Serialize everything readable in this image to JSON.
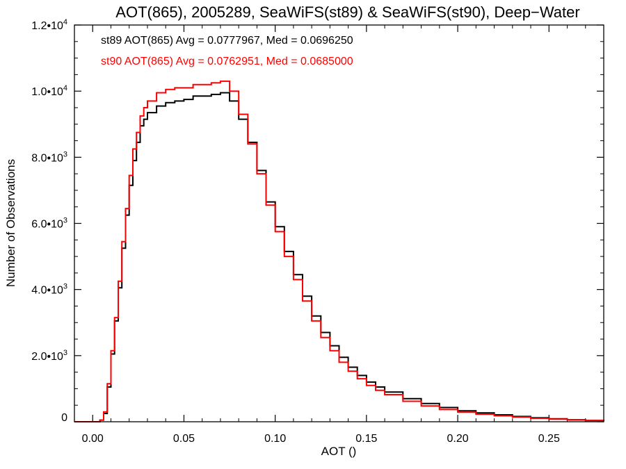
{
  "chart_data": {
    "type": "line",
    "title": "AOT(865), 2005289, SeaWiFS(st89) & SeaWiFS(st90), Deep−Water",
    "xlabel": "AOT ()",
    "ylabel": "Number of Observations",
    "xlim": [
      -0.01,
      0.28
    ],
    "ylim": [
      0,
      12000
    ],
    "xticks": [
      {
        "value": 0.0,
        "label": "0.00"
      },
      {
        "value": 0.05,
        "label": "0.05"
      },
      {
        "value": 0.1,
        "label": "0.10"
      },
      {
        "value": 0.15,
        "label": "0.15"
      },
      {
        "value": 0.2,
        "label": "0.20"
      },
      {
        "value": 0.25,
        "label": "0.25"
      }
    ],
    "yticks": [
      {
        "value": 0,
        "mantissa": "0",
        "exponent": ""
      },
      {
        "value": 2000,
        "mantissa": "2.0•10",
        "exponent": "3"
      },
      {
        "value": 4000,
        "mantissa": "4.0•10",
        "exponent": "3"
      },
      {
        "value": 6000,
        "mantissa": "6.0•10",
        "exponent": "3"
      },
      {
        "value": 8000,
        "mantissa": "8.0•10",
        "exponent": "3"
      },
      {
        "value": 10000,
        "mantissa": "1.0•10",
        "exponent": "4"
      },
      {
        "value": 12000,
        "mantissa": "1.2•10",
        "exponent": "4"
      }
    ],
    "annotations": [
      {
        "text": "st89 AOT(865) Avg = 0.0777967, Med = 0.0696250",
        "color": "#000000"
      },
      {
        "text": "st90 AOT(865) Avg = 0.0762951, Med = 0.0685000",
        "color": "#ff0000"
      }
    ],
    "series": [
      {
        "color": "#000000",
        "x": [
          -0.01,
          0.0,
          0.004,
          0.006,
          0.008,
          0.01,
          0.012,
          0.014,
          0.016,
          0.018,
          0.02,
          0.022,
          0.024,
          0.026,
          0.028,
          0.03,
          0.035,
          0.04,
          0.045,
          0.05,
          0.055,
          0.06,
          0.065,
          0.07,
          0.075,
          0.08,
          0.085,
          0.09,
          0.095,
          0.1,
          0.105,
          0.11,
          0.115,
          0.12,
          0.125,
          0.13,
          0.135,
          0.14,
          0.145,
          0.15,
          0.155,
          0.16,
          0.17,
          0.18,
          0.19,
          0.2,
          0.21,
          0.22,
          0.23,
          0.24,
          0.25,
          0.26,
          0.27,
          0.28
        ],
        "y": [
          0,
          0,
          50,
          250,
          1050,
          2050,
          3050,
          4050,
          5250,
          6250,
          7150,
          7900,
          8450,
          8950,
          9150,
          9350,
          9550,
          9650,
          9700,
          9750,
          9850,
          9850,
          9900,
          9950,
          9700,
          9150,
          8450,
          7600,
          6650,
          5900,
          5150,
          4450,
          3800,
          3200,
          2700,
          2300,
          1950,
          1650,
          1400,
          1200,
          1050,
          900,
          700,
          550,
          430,
          330,
          270,
          210,
          160,
          120,
          90,
          60,
          40,
          20
        ]
      },
      {
        "color": "#ff0000",
        "x": [
          -0.01,
          0.0,
          0.004,
          0.006,
          0.008,
          0.01,
          0.012,
          0.014,
          0.016,
          0.018,
          0.02,
          0.022,
          0.024,
          0.026,
          0.028,
          0.03,
          0.035,
          0.04,
          0.045,
          0.05,
          0.055,
          0.06,
          0.065,
          0.07,
          0.075,
          0.08,
          0.085,
          0.09,
          0.095,
          0.1,
          0.105,
          0.11,
          0.115,
          0.12,
          0.125,
          0.13,
          0.135,
          0.14,
          0.145,
          0.15,
          0.155,
          0.16,
          0.17,
          0.18,
          0.19,
          0.2,
          0.21,
          0.22,
          0.23,
          0.24,
          0.25,
          0.26,
          0.27,
          0.28
        ],
        "y": [
          0,
          0,
          50,
          300,
          1150,
          2150,
          3150,
          4250,
          5450,
          6450,
          7450,
          8250,
          8750,
          9250,
          9500,
          9700,
          9950,
          10050,
          10100,
          10100,
          10200,
          10200,
          10250,
          10300,
          10000,
          9300,
          8400,
          7500,
          6550,
          5750,
          5000,
          4300,
          3650,
          3050,
          2550,
          2150,
          1800,
          1530,
          1300,
          1100,
          950,
          820,
          620,
          480,
          370,
          290,
          230,
          180,
          140,
          105,
          80,
          55,
          35,
          20
        ]
      }
    ]
  }
}
